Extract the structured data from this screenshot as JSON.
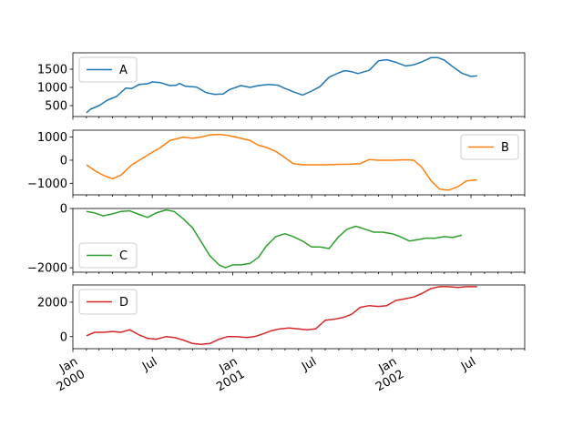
{
  "chart_data": {
    "type": "line",
    "layout": "4 vertically stacked subplots sharing the x axis",
    "x_unit": "month start (YYYY-MM)",
    "x_range": [
      "2000-01",
      "2002-11"
    ],
    "x_ticks": [
      {
        "x": "2000-01",
        "label": "Jan",
        "label2": "2000"
      },
      {
        "x": "2000-07",
        "label": "Jul",
        "label2": ""
      },
      {
        "x": "2001-01",
        "label": "Jan",
        "label2": "2001"
      },
      {
        "x": "2001-07",
        "label": "Jul",
        "label2": ""
      },
      {
        "x": "2002-01",
        "label": "Jan",
        "label2": "2002"
      },
      {
        "x": "2002-07",
        "label": "Jul",
        "label2": ""
      }
    ],
    "grid": false,
    "series": [
      {
        "name": "A",
        "color": "#1f77b4",
        "legend_position": "upper left",
        "ylim": [
          200,
          1950
        ],
        "yticks": [
          500,
          1000,
          1500
        ],
        "points": [
          [
            "2000-02-01",
            300
          ],
          [
            "2000-02-10",
            400
          ],
          [
            "2000-03-01",
            500
          ],
          [
            "2000-03-20",
            650
          ],
          [
            "2000-04-10",
            750
          ],
          [
            "2000-05-01",
            980
          ],
          [
            "2000-05-15",
            970
          ],
          [
            "2000-06-01",
            1080
          ],
          [
            "2000-06-20",
            1100
          ],
          [
            "2000-07-01",
            1150
          ],
          [
            "2000-07-20",
            1130
          ],
          [
            "2000-08-10",
            1050
          ],
          [
            "2000-08-25",
            1060
          ],
          [
            "2000-09-01",
            1110
          ],
          [
            "2000-09-15",
            1030
          ],
          [
            "2000-10-10",
            1010
          ],
          [
            "2000-11-01",
            860
          ],
          [
            "2000-11-20",
            810
          ],
          [
            "2000-12-10",
            820
          ],
          [
            "2000-12-25",
            940
          ],
          [
            "2001-01-20",
            1050
          ],
          [
            "2001-02-10",
            1000
          ],
          [
            "2001-03-01",
            1050
          ],
          [
            "2001-03-25",
            1080
          ],
          [
            "2001-04-15",
            1060
          ],
          [
            "2001-05-01",
            970
          ],
          [
            "2001-05-20",
            880
          ],
          [
            "2001-06-10",
            790
          ],
          [
            "2001-07-01",
            900
          ],
          [
            "2001-07-20",
            1020
          ],
          [
            "2001-08-10",
            1280
          ],
          [
            "2001-09-01",
            1400
          ],
          [
            "2001-09-15",
            1460
          ],
          [
            "2001-10-01",
            1430
          ],
          [
            "2001-10-15",
            1380
          ],
          [
            "2001-11-10",
            1470
          ],
          [
            "2001-12-01",
            1730
          ],
          [
            "2001-12-20",
            1760
          ],
          [
            "2002-01-10",
            1690
          ],
          [
            "2002-02-01",
            1590
          ],
          [
            "2002-02-20",
            1620
          ],
          [
            "2002-03-10",
            1700
          ],
          [
            "2002-04-01",
            1820
          ],
          [
            "2002-04-15",
            1820
          ],
          [
            "2002-05-01",
            1750
          ],
          [
            "2002-05-20",
            1570
          ],
          [
            "2002-06-10",
            1390
          ],
          [
            "2002-07-01",
            1300
          ],
          [
            "2002-07-15",
            1320
          ]
        ]
      },
      {
        "name": "B",
        "color": "#ff7f0e",
        "legend_position": "upper right",
        "ylim": [
          -1500,
          1300
        ],
        "yticks": [
          -1000,
          0,
          1000
        ],
        "points": [
          [
            "2000-02-01",
            -200
          ],
          [
            "2000-02-20",
            -450
          ],
          [
            "2000-03-10",
            -650
          ],
          [
            "2000-04-01",
            -800
          ],
          [
            "2000-04-20",
            -650
          ],
          [
            "2000-05-15",
            -200
          ],
          [
            "2000-06-10",
            100
          ],
          [
            "2000-07-01",
            350
          ],
          [
            "2000-07-20",
            550
          ],
          [
            "2000-08-10",
            850
          ],
          [
            "2000-09-10",
            1000
          ],
          [
            "2000-10-01",
            950
          ],
          [
            "2000-10-20",
            1000
          ],
          [
            "2000-11-10",
            1100
          ],
          [
            "2000-12-01",
            1120
          ],
          [
            "2000-12-20",
            1080
          ],
          [
            "2001-01-20",
            950
          ],
          [
            "2001-02-10",
            850
          ],
          [
            "2001-03-01",
            650
          ],
          [
            "2001-03-20",
            550
          ],
          [
            "2001-04-10",
            380
          ],
          [
            "2001-05-01",
            100
          ],
          [
            "2001-05-20",
            -150
          ],
          [
            "2001-06-10",
            -200
          ],
          [
            "2001-07-01",
            -200
          ],
          [
            "2001-08-01",
            -200
          ],
          [
            "2001-09-01",
            -180
          ],
          [
            "2001-10-01",
            -170
          ],
          [
            "2001-10-20",
            -150
          ],
          [
            "2001-11-10",
            30
          ],
          [
            "2001-12-01",
            0
          ],
          [
            "2002-01-01",
            0
          ],
          [
            "2002-02-01",
            20
          ],
          [
            "2002-02-20",
            0
          ],
          [
            "2002-03-10",
            -300
          ],
          [
            "2002-04-01",
            -900
          ],
          [
            "2002-04-20",
            -1250
          ],
          [
            "2002-05-10",
            -1300
          ],
          [
            "2002-06-01",
            -1150
          ],
          [
            "2002-06-20",
            -900
          ],
          [
            "2002-07-15",
            -850
          ]
        ]
      },
      {
        "name": "C",
        "color": "#2ca02c",
        "legend_position": "lower left",
        "ylim": [
          -2150,
          0
        ],
        "yticks": [
          -2000,
          0
        ],
        "points": [
          [
            "2000-02-01",
            -100
          ],
          [
            "2000-02-20",
            -150
          ],
          [
            "2000-03-10",
            -250
          ],
          [
            "2000-04-01",
            -180
          ],
          [
            "2000-04-20",
            -100
          ],
          [
            "2000-05-10",
            -80
          ],
          [
            "2000-06-01",
            -200
          ],
          [
            "2000-06-20",
            -300
          ],
          [
            "2000-07-10",
            -150
          ],
          [
            "2000-08-01",
            -50
          ],
          [
            "2000-08-20",
            -100
          ],
          [
            "2000-09-10",
            -350
          ],
          [
            "2000-10-01",
            -650
          ],
          [
            "2000-10-20",
            -1100
          ],
          [
            "2000-11-10",
            -1600
          ],
          [
            "2000-12-01",
            -1900
          ],
          [
            "2000-12-15",
            -2000
          ],
          [
            "2001-01-01",
            -1900
          ],
          [
            "2001-01-20",
            -1900
          ],
          [
            "2001-02-10",
            -1850
          ],
          [
            "2001-03-01",
            -1650
          ],
          [
            "2001-03-20",
            -1250
          ],
          [
            "2001-04-10",
            -950
          ],
          [
            "2001-05-01",
            -850
          ],
          [
            "2001-05-20",
            -950
          ],
          [
            "2001-06-10",
            -1100
          ],
          [
            "2001-07-01",
            -1300
          ],
          [
            "2001-07-20",
            -1300
          ],
          [
            "2001-08-10",
            -1350
          ],
          [
            "2001-09-01",
            -950
          ],
          [
            "2001-09-20",
            -700
          ],
          [
            "2001-10-10",
            -600
          ],
          [
            "2001-11-01",
            -700
          ],
          [
            "2001-11-20",
            -800
          ],
          [
            "2001-12-10",
            -800
          ],
          [
            "2002-01-01",
            -850
          ],
          [
            "2002-01-20",
            -950
          ],
          [
            "2002-02-10",
            -1100
          ],
          [
            "2002-03-01",
            -1050
          ],
          [
            "2002-03-20",
            -1000
          ],
          [
            "2002-04-10",
            -1000
          ],
          [
            "2002-05-01",
            -950
          ],
          [
            "2002-05-20",
            -980
          ],
          [
            "2002-06-10",
            -900
          ]
        ]
      },
      {
        "name": "D",
        "color": "#d62728",
        "legend_position": "upper left",
        "ylim": [
          -700,
          3000
        ],
        "yticks": [
          0,
          2000
        ],
        "points": [
          [
            "2000-02-01",
            50
          ],
          [
            "2000-02-20",
            250
          ],
          [
            "2000-03-10",
            250
          ],
          [
            "2000-04-01",
            300
          ],
          [
            "2000-04-20",
            250
          ],
          [
            "2000-05-10",
            400
          ],
          [
            "2000-06-01",
            100
          ],
          [
            "2000-06-20",
            -100
          ],
          [
            "2000-07-10",
            -150
          ],
          [
            "2000-08-01",
            0
          ],
          [
            "2000-08-20",
            -50
          ],
          [
            "2000-09-10",
            -200
          ],
          [
            "2000-10-01",
            -400
          ],
          [
            "2000-10-20",
            -450
          ],
          [
            "2000-11-10",
            -400
          ],
          [
            "2000-12-01",
            -150
          ],
          [
            "2000-12-20",
            0
          ],
          [
            "2001-01-10",
            0
          ],
          [
            "2001-02-01",
            -50
          ],
          [
            "2001-02-20",
            0
          ],
          [
            "2001-03-10",
            150
          ],
          [
            "2001-04-01",
            350
          ],
          [
            "2001-04-20",
            450
          ],
          [
            "2001-05-10",
            500
          ],
          [
            "2001-06-01",
            450
          ],
          [
            "2001-06-20",
            400
          ],
          [
            "2001-07-10",
            450
          ],
          [
            "2001-08-01",
            950
          ],
          [
            "2001-08-20",
            1000
          ],
          [
            "2001-09-10",
            1100
          ],
          [
            "2001-10-01",
            1300
          ],
          [
            "2001-10-20",
            1700
          ],
          [
            "2001-11-10",
            1800
          ],
          [
            "2001-12-01",
            1750
          ],
          [
            "2001-12-20",
            1800
          ],
          [
            "2002-01-10",
            2100
          ],
          [
            "2002-02-01",
            2200
          ],
          [
            "2002-02-20",
            2300
          ],
          [
            "2002-03-10",
            2500
          ],
          [
            "2002-04-01",
            2800
          ],
          [
            "2002-04-20",
            2900
          ],
          [
            "2002-05-10",
            2900
          ],
          [
            "2002-06-01",
            2850
          ],
          [
            "2002-06-20",
            2900
          ],
          [
            "2002-07-15",
            2900
          ]
        ]
      }
    ]
  }
}
